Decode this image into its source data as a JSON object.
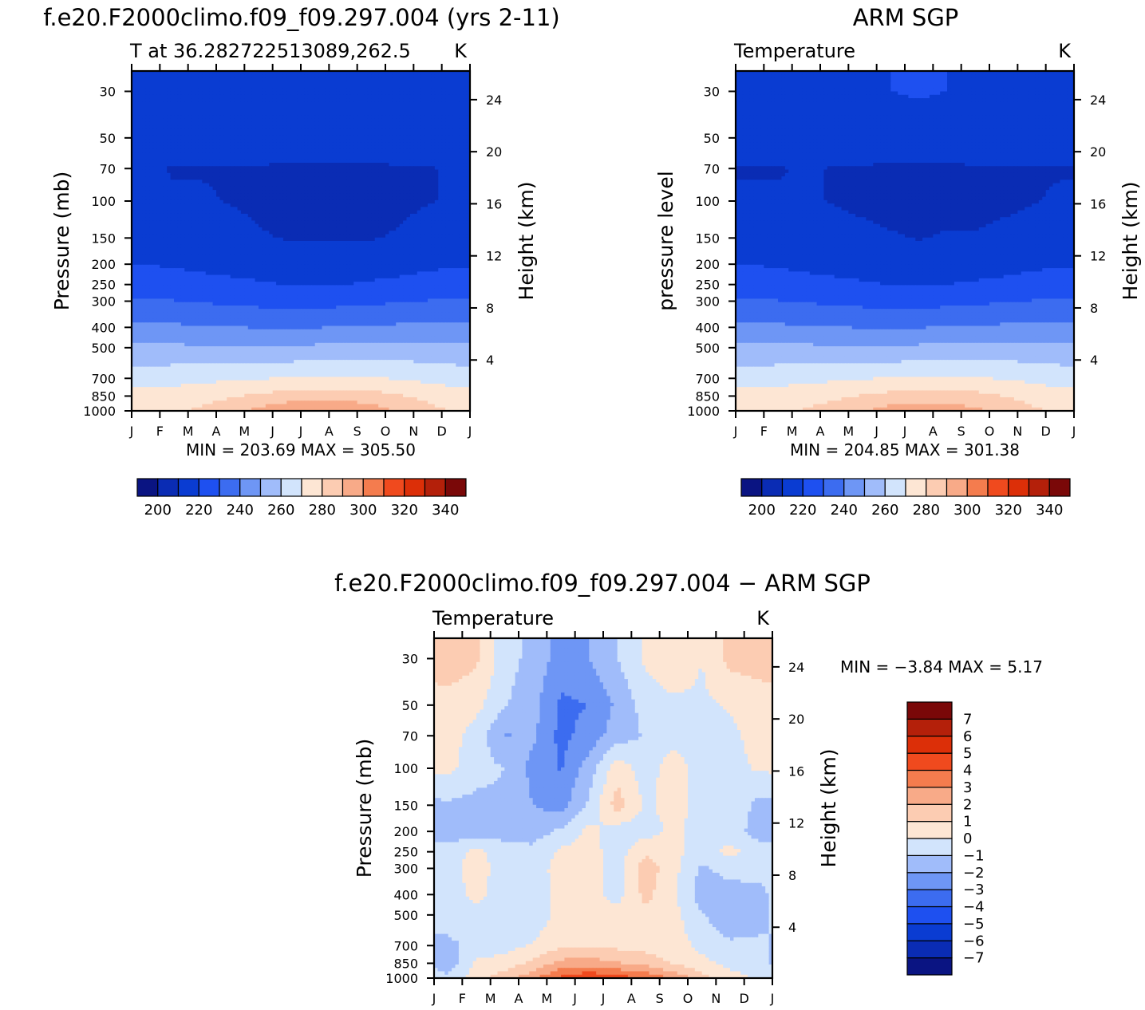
{
  "figure": {
    "titles": {
      "panel_1": "f.e20.F2000climo.f09_f09.297.004 (yrs 2-11)",
      "panel_2": "ARM SGP",
      "panel_3": "f.e20.F2000climo.f09_f09.297.004 − ARM SGP"
    }
  },
  "chart_data": [
    {
      "type": "heatmap",
      "title": "f.e20.F2000climo.f09_f09.297.004 (yrs 2-11)",
      "subtitle": "T at 36.282722513089,262.5",
      "units": "K",
      "ylabel": "Pressure (mb)",
      "y2label": "Height (km)",
      "x_tick_labels": [
        "J",
        "F",
        "M",
        "A",
        "M",
        "J",
        "J",
        "A",
        "S",
        "O",
        "N",
        "D",
        "J"
      ],
      "y_ticks": [
        30,
        50,
        70,
        100,
        150,
        200,
        250,
        300,
        400,
        500,
        700,
        850,
        1000
      ],
      "y_range": [
        24,
        1000
      ],
      "y_scale": "log",
      "y2_ticks": [
        24,
        20,
        16,
        12,
        8,
        4
      ],
      "stats_text": "MIN = 203.69 MAX = 305.50",
      "min": 203.69,
      "max": 305.5,
      "colorbar": {
        "orientation": "horizontal",
        "levels": [
          195,
          200,
          205,
          210,
          215,
          220,
          225,
          230,
          235,
          240,
          245,
          250,
          255,
          260,
          265,
          270,
          275,
          280,
          285,
          290,
          295,
          300,
          305,
          310,
          315,
          320,
          325,
          330,
          335,
          340,
          345,
          350
        ],
        "tick_labels": [
          "200",
          "220",
          "240",
          "260",
          "280",
          "300",
          "320",
          "340"
        ],
        "colors": [
          "#0a1482",
          "#0a2cb4",
          "#0a3cd2",
          "#1e50f0",
          "#3c6cf0",
          "#6e96f5",
          "#a0bcfa",
          "#d2e4fc",
          "#fde6d4",
          "#fcccb2",
          "#f8aa88",
          "#f47c4e",
          "#f04a1e",
          "#dc2f08",
          "#b4200a",
          "#7a0808"
        ]
      },
      "field": {
        "months": [
          0.5,
          1.5,
          2.5,
          3.5,
          4.5,
          5.5,
          6.5,
          7.5,
          8.5,
          9.5,
          10.5,
          11.5
        ],
        "pressures": [
          30,
          50,
          70,
          100,
          150,
          200,
          250,
          300,
          400,
          500,
          700,
          850,
          1000
        ],
        "values": [
          [
            222,
            222,
            222,
            222,
            222,
            223,
            224,
            224,
            223,
            222,
            222,
            222
          ],
          [
            220,
            219,
            219,
            219,
            219,
            219,
            220,
            220,
            219,
            219,
            219,
            220
          ],
          [
            215,
            214,
            214,
            214,
            214,
            213,
            213,
            213,
            213,
            214,
            214,
            215
          ],
          [
            216,
            215,
            215,
            214,
            213,
            212,
            212,
            212,
            212,
            213,
            214,
            215
          ],
          [
            219,
            218,
            218,
            217,
            215,
            214,
            214,
            214,
            214,
            215,
            217,
            219
          ],
          [
            224,
            223,
            222,
            221,
            220,
            219,
            219,
            219,
            220,
            221,
            222,
            223
          ],
          [
            229,
            228,
            227,
            226,
            225,
            224,
            224,
            224,
            225,
            226,
            228,
            229
          ],
          [
            235,
            234,
            233,
            232,
            231,
            230,
            230,
            231,
            232,
            233,
            234,
            235
          ],
          [
            246,
            245,
            244,
            244,
            243,
            243,
            243,
            244,
            244,
            245,
            246,
            246
          ],
          [
            255,
            255,
            254,
            254,
            254,
            254,
            255,
            255,
            255,
            256,
            256,
            256
          ],
          [
            268,
            269,
            270,
            271,
            272,
            273,
            274,
            274,
            273,
            272,
            270,
            268
          ],
          [
            276,
            277,
            279,
            281,
            284,
            286,
            287,
            287,
            286,
            283,
            280,
            277
          ],
          [
            280,
            281,
            284,
            289,
            294,
            300,
            303,
            302,
            297,
            291,
            285,
            281
          ]
        ]
      }
    },
    {
      "type": "heatmap",
      "title": "ARM SGP",
      "subtitle": "Temperature",
      "units": "K",
      "ylabel": "pressure level",
      "y2label": "Height (km)",
      "x_tick_labels": [
        "J",
        "F",
        "M",
        "A",
        "M",
        "J",
        "J",
        "A",
        "S",
        "O",
        "N",
        "D",
        "J"
      ],
      "y_ticks": [
        30,
        50,
        70,
        100,
        150,
        200,
        250,
        300,
        400,
        500,
        700,
        850,
        1000
      ],
      "y_range": [
        24,
        1000
      ],
      "y_scale": "log",
      "y2_ticks": [
        24,
        20,
        16,
        12,
        8,
        4
      ],
      "stats_text": "MIN = 204.85 MAX = 301.38",
      "min": 204.85,
      "max": 301.38,
      "colorbar": {
        "orientation": "horizontal",
        "levels": [
          195,
          200,
          205,
          210,
          215,
          220,
          225,
          230,
          235,
          240,
          245,
          250,
          255,
          260,
          265,
          270,
          275,
          280,
          285,
          290,
          295,
          300,
          305,
          310,
          315,
          320,
          325,
          330,
          335,
          340,
          345,
          350
        ],
        "tick_labels": [
          "200",
          "220",
          "240",
          "260",
          "280",
          "300",
          "320",
          "340"
        ],
        "colors": [
          "#0a1482",
          "#0a2cb4",
          "#0a3cd2",
          "#1e50f0",
          "#3c6cf0",
          "#6e96f5",
          "#a0bcfa",
          "#d2e4fc",
          "#fde6d4",
          "#fcccb2",
          "#f8aa88",
          "#f47c4e",
          "#f04a1e",
          "#dc2f08",
          "#b4200a",
          "#7a0808"
        ]
      },
      "field": {
        "months": [
          0.5,
          1.5,
          2.5,
          3.5,
          4.5,
          5.5,
          6.5,
          7.5,
          8.5,
          9.5,
          10.5,
          11.5
        ],
        "pressures": [
          30,
          50,
          70,
          100,
          150,
          200,
          250,
          300,
          400,
          500,
          700,
          850,
          1000
        ],
        "values": [
          [
            222,
            222,
            222,
            222,
            223,
            224,
            225,
            224,
            223,
            222,
            222,
            222
          ],
          [
            219,
            219,
            219,
            219,
            219,
            219,
            220,
            220,
            219,
            219,
            219,
            219
          ],
          [
            214,
            214,
            215,
            214,
            214,
            213,
            213,
            213,
            214,
            214,
            214,
            214
          ],
          [
            215,
            215,
            215,
            214,
            213,
            212,
            212,
            212,
            212,
            213,
            214,
            215
          ],
          [
            219,
            218,
            218,
            217,
            216,
            215,
            214,
            215,
            215,
            216,
            217,
            219
          ],
          [
            224,
            223,
            222,
            221,
            220,
            219,
            219,
            220,
            220,
            221,
            222,
            223
          ],
          [
            229,
            228,
            227,
            226,
            225,
            224,
            224,
            224,
            225,
            226,
            228,
            229
          ],
          [
            235,
            234,
            233,
            232,
            231,
            230,
            230,
            231,
            232,
            233,
            234,
            235
          ],
          [
            246,
            245,
            244,
            244,
            243,
            243,
            243,
            244,
            244,
            245,
            246,
            246
          ],
          [
            255,
            255,
            255,
            254,
            254,
            254,
            255,
            255,
            255,
            256,
            256,
            256
          ],
          [
            268,
            269,
            270,
            271,
            272,
            273,
            273,
            273,
            273,
            272,
            270,
            268
          ],
          [
            276,
            277,
            278,
            280,
            283,
            285,
            286,
            286,
            285,
            282,
            279,
            277
          ],
          [
            280,
            281,
            283,
            287,
            291,
            296,
            298,
            297,
            294,
            289,
            284,
            281
          ]
        ]
      }
    },
    {
      "type": "heatmap",
      "title": "f.e20.F2000climo.f09_f09.297.004 − ARM SGP",
      "subtitle": "Temperature",
      "units": "K",
      "ylabel": "Pressure (mb)",
      "y2label": "Height (km)",
      "x_tick_labels": [
        "J",
        "F",
        "M",
        "A",
        "M",
        "J",
        "J",
        "A",
        "S",
        "O",
        "N",
        "D",
        "J"
      ],
      "y_ticks": [
        30,
        50,
        70,
        100,
        150,
        200,
        250,
        300,
        400,
        500,
        700,
        850,
        1000
      ],
      "y_range": [
        24,
        1000
      ],
      "y_scale": "log",
      "y2_ticks": [
        24,
        20,
        16,
        12,
        8,
        4
      ],
      "stats_text": "MIN = −3.84 MAX = 5.17",
      "min": -3.84,
      "max": 5.17,
      "colorbar": {
        "orientation": "vertical",
        "levels": [
          -8,
          -7,
          -6,
          -5,
          -4,
          -3,
          -2,
          -1,
          0,
          1,
          2,
          3,
          4,
          5,
          6,
          7,
          8
        ],
        "tick_labels": [
          "−7",
          "−6",
          "−5",
          "−4",
          "−3",
          "−2",
          "−1",
          "0",
          "1",
          "2",
          "3",
          "4",
          "5",
          "6",
          "7"
        ],
        "tick_values": [
          -7,
          -6,
          -5,
          -4,
          -3,
          -2,
          -1,
          0,
          1,
          2,
          3,
          4,
          5,
          6,
          7
        ],
        "colors": [
          "#0a1482",
          "#0a2cb4",
          "#0a3cd2",
          "#1e50f0",
          "#3c6cf0",
          "#6e96f5",
          "#a0bcfa",
          "#d2e4fc",
          "#fde6d4",
          "#fcccb2",
          "#f8aa88",
          "#f47c4e",
          "#f04a1e",
          "#dc2f08",
          "#b4200a",
          "#7a0808"
        ]
      },
      "field": {
        "months": [
          0.5,
          1.5,
          2.5,
          3.5,
          4.5,
          5.5,
          6.5,
          7.5,
          8.5,
          9.5,
          10.5,
          11.5
        ],
        "pressures": [
          30,
          50,
          70,
          100,
          150,
          200,
          250,
          300,
          400,
          500,
          700,
          850,
          1000
        ],
        "values": [
          [
            1.6,
            1.2,
            -0.6,
            -1.3,
            -2.5,
            -2.0,
            -1.0,
            0.2,
            1.0,
            0.0,
            1.3,
            1.5
          ],
          [
            0.6,
            0.3,
            -0.9,
            -1.6,
            -3.2,
            -3.0,
            -1.8,
            -0.6,
            -0.3,
            -0.2,
            0.1,
            0.4
          ],
          [
            0.4,
            -0.4,
            -2.1,
            -1.8,
            -3.3,
            -2.6,
            -1.5,
            -0.9,
            -0.5,
            -0.6,
            -0.2,
            0.3
          ],
          [
            0.3,
            -0.6,
            -1.0,
            -2.3,
            -3.1,
            -1.5,
            0.6,
            -0.5,
            0.6,
            -0.5,
            -0.3,
            0.1
          ],
          [
            -1.2,
            -1.3,
            -1.2,
            -2.0,
            -2.4,
            -0.8,
            1.5,
            -0.2,
            0.4,
            -0.4,
            -0.2,
            -1.3
          ],
          [
            -1.6,
            -1.6,
            -1.4,
            -1.5,
            -0.8,
            0.3,
            -0.6,
            -0.4,
            0.2,
            -0.4,
            -0.4,
            -1.5
          ],
          [
            -0.6,
            0.4,
            -0.6,
            -0.7,
            0.2,
            0.4,
            -0.5,
            0.8,
            0.3,
            -0.5,
            0.3,
            -0.4
          ],
          [
            -0.5,
            0.5,
            -0.6,
            -0.5,
            0.4,
            0.5,
            -0.4,
            1.6,
            0.3,
            -1.2,
            -0.6,
            -0.6
          ],
          [
            -0.5,
            0.3,
            -0.5,
            -0.7,
            0.5,
            0.4,
            -0.4,
            1.3,
            0.2,
            -1.5,
            -1.5,
            -1.3
          ],
          [
            -0.4,
            -0.3,
            -0.6,
            -0.8,
            0.5,
            0.6,
            0.4,
            0.8,
            0.3,
            -0.9,
            -1.8,
            -1.4
          ],
          [
            -1.3,
            -0.6,
            -0.4,
            0.1,
            0.8,
            0.9,
            0.7,
            0.6,
            0.5,
            -0.3,
            -0.8,
            -0.8
          ],
          [
            -1.6,
            0.2,
            0.4,
            1.2,
            2.3,
            2.5,
            2.1,
            1.6,
            0.9,
            0.3,
            -0.3,
            -0.7
          ],
          [
            -0.8,
            0.6,
            1.6,
            2.7,
            4.3,
            5.0,
            4.4,
            4.0,
            2.8,
            1.4,
            0.4,
            -0.1
          ]
        ]
      }
    }
  ]
}
